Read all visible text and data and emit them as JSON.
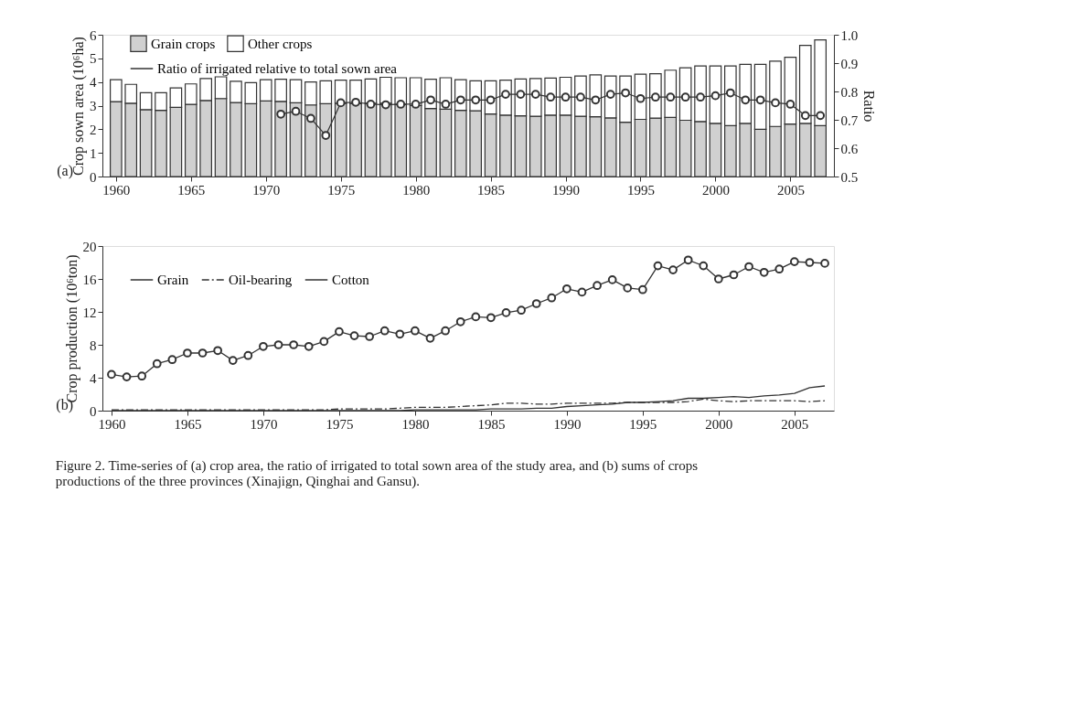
{
  "chart_data": [
    {
      "type": "bar",
      "stacked": true,
      "ylabel": "Crop sown area (10⁶ha)",
      "y2label": "Ratio",
      "legend": "top left",
      "annotations": [
        "(a)"
      ],
      "x": [
        1960,
        1961,
        1962,
        1963,
        1964,
        1965,
        1966,
        1967,
        1968,
        1969,
        1970,
        1971,
        1972,
        1973,
        1974,
        1975,
        1976,
        1977,
        1978,
        1979,
        1980,
        1981,
        1982,
        1983,
        1984,
        1985,
        1986,
        1987,
        1988,
        1989,
        1990,
        1991,
        1992,
        1993,
        1994,
        1995,
        1996,
        1997,
        1998,
        1999,
        2000,
        2001,
        2002,
        2003,
        2004,
        2005,
        2006,
        2007
      ],
      "xlim": [
        1959.4,
        2007.6
      ],
      "xticks": [
        1960,
        1965,
        1970,
        1975,
        1980,
        1985,
        1990,
        1995,
        2000,
        2005
      ],
      "ylim": [
        0,
        6
      ],
      "yticks": [
        0,
        1,
        2,
        3,
        4,
        5,
        6
      ],
      "y2lim": [
        0.5,
        1.0
      ],
      "y2ticks": [
        0.5,
        0.6,
        0.7,
        0.8,
        0.9,
        {
          "value": 1.0,
          "label": "1.0"
        }
      ],
      "series": [
        {
          "name": "Grain crops",
          "color": "#d0d0d0",
          "values": [
            3.17,
            3.1,
            2.83,
            2.8,
            2.93,
            3.05,
            3.22,
            3.3,
            3.13,
            3.08,
            3.2,
            3.18,
            3.12,
            3.03,
            3.08,
            3.1,
            3.08,
            3.1,
            3.1,
            3.05,
            3.0,
            2.88,
            2.85,
            2.8,
            2.78,
            2.65,
            2.6,
            2.57,
            2.55,
            2.6,
            2.6,
            2.55,
            2.53,
            2.48,
            2.3,
            2.42,
            2.47,
            2.5,
            2.38,
            2.33,
            2.25,
            2.15,
            2.25,
            2.0,
            2.12,
            2.22,
            2.25,
            2.15
          ]
        },
        {
          "name": "Other crops",
          "color": "#ffffff",
          "values": [
            0.93,
            0.8,
            0.72,
            0.75,
            0.82,
            0.87,
            0.93,
            0.92,
            0.9,
            0.89,
            0.9,
            0.94,
            0.98,
            0.97,
            0.97,
            0.98,
            1.0,
            1.03,
            1.1,
            1.13,
            1.18,
            1.24,
            1.33,
            1.3,
            1.27,
            1.4,
            1.48,
            1.56,
            1.6,
            1.57,
            1.6,
            1.7,
            1.77,
            1.77,
            1.95,
            1.91,
            1.88,
            2.0,
            2.22,
            2.35,
            2.43,
            2.53,
            2.5,
            2.75,
            2.76,
            2.83,
            3.3,
            3.63
          ]
        },
        {
          "name": "Ratio of irrigated relative to total sown area",
          "type": "line",
          "axis": "y2",
          "marker": "circle",
          "color": "#333333",
          "x": [
            1971,
            1972,
            1973,
            1974,
            1975,
            1976,
            1977,
            1978,
            1979,
            1980,
            1981,
            1982,
            1983,
            1984,
            1985,
            1986,
            1987,
            1988,
            1989,
            1990,
            1991,
            1992,
            1993,
            1994,
            1995,
            1996,
            1997,
            1998,
            1999,
            2000,
            2001,
            2002,
            2003,
            2004,
            2005,
            2006,
            2007
          ],
          "values": [
            0.72,
            0.73,
            0.705,
            0.645,
            0.76,
            0.762,
            0.755,
            0.753,
            0.755,
            0.755,
            0.77,
            0.755,
            0.77,
            0.77,
            0.77,
            0.79,
            0.79,
            0.79,
            0.78,
            0.78,
            0.78,
            0.77,
            0.79,
            0.795,
            0.775,
            0.78,
            0.78,
            0.78,
            0.78,
            0.785,
            0.795,
            0.77,
            0.77,
            0.76,
            0.755,
            0.715,
            0.715
          ]
        }
      ]
    },
    {
      "type": "line",
      "ylabel": "Crop production (10⁶ton)",
      "legend": "top left",
      "annotations": [
        "(b)",
        "Figure 2. Time-series of (a) crop area, the ratio of irrigated to total sown area of the study area, and (b) sums of crops productions of the three provinces (Xinajign, Qinghai and Gansu)."
      ],
      "x": [
        1960,
        1961,
        1962,
        1963,
        1964,
        1965,
        1966,
        1967,
        1968,
        1969,
        1970,
        1971,
        1972,
        1973,
        1974,
        1975,
        1976,
        1977,
        1978,
        1979,
        1980,
        1981,
        1982,
        1983,
        1984,
        1985,
        1986,
        1987,
        1988,
        1989,
        1990,
        1991,
        1992,
        1993,
        1994,
        1995,
        1996,
        1997,
        1998,
        1999,
        2000,
        2001,
        2002,
        2003,
        2004,
        2005,
        2006,
        2007
      ],
      "xlim": [
        1959.4,
        2007.6
      ],
      "xticks": [
        1960,
        1965,
        1970,
        1975,
        1980,
        1985,
        1990,
        1995,
        2000,
        2005
      ],
      "ylim": [
        0,
        20
      ],
      "yticks": [
        0,
        4,
        8,
        12,
        16,
        20
      ],
      "series": [
        {
          "name": "Grain",
          "color": "#333333",
          "marker": "circle",
          "line_style": "solid",
          "values": [
            4.4,
            4.1,
            4.2,
            5.7,
            6.2,
            7.0,
            7.0,
            7.3,
            6.1,
            6.7,
            7.8,
            8.0,
            8.0,
            7.8,
            8.4,
            9.6,
            9.1,
            9.0,
            9.7,
            9.3,
            9.7,
            8.8,
            9.7,
            10.8,
            11.4,
            11.3,
            11.9,
            12.2,
            13.0,
            13.7,
            14.8,
            14.4,
            15.2,
            15.9,
            14.9,
            14.7,
            17.6,
            17.1,
            18.3,
            17.6,
            16.0,
            16.5,
            17.5,
            16.8,
            17.2,
            18.1,
            18.0,
            17.9
          ]
        },
        {
          "name": "Oil-bearing",
          "color": "#333333",
          "marker": "none",
          "line_style": "dashed",
          "values": [
            0.1,
            0.1,
            0.1,
            0.1,
            0.1,
            0.1,
            0.1,
            0.1,
            0.1,
            0.1,
            0.1,
            0.1,
            0.1,
            0.1,
            0.1,
            0.2,
            0.2,
            0.2,
            0.2,
            0.3,
            0.4,
            0.4,
            0.4,
            0.5,
            0.6,
            0.7,
            0.9,
            0.9,
            0.8,
            0.8,
            0.9,
            0.9,
            0.9,
            0.9,
            1.0,
            1.0,
            1.0,
            1.0,
            1.1,
            1.4,
            1.2,
            1.1,
            1.2,
            1.2,
            1.2,
            1.2,
            1.1,
            1.2
          ]
        },
        {
          "name": "Cotton",
          "color": "#333333",
          "marker": "none",
          "line_style": "solid",
          "values": [
            0,
            0,
            0,
            0,
            0,
            0,
            0,
            0,
            0,
            0,
            0,
            0,
            0,
            0,
            0,
            0,
            0,
            0,
            0,
            0,
            0.1,
            0.1,
            0.1,
            0.1,
            0.1,
            0.2,
            0.2,
            0.2,
            0.3,
            0.3,
            0.5,
            0.6,
            0.7,
            0.8,
            1.0,
            1.0,
            1.1,
            1.2,
            1.5,
            1.5,
            1.6,
            1.7,
            1.6,
            1.8,
            1.9,
            2.1,
            2.8,
            3.0
          ]
        }
      ]
    }
  ]
}
